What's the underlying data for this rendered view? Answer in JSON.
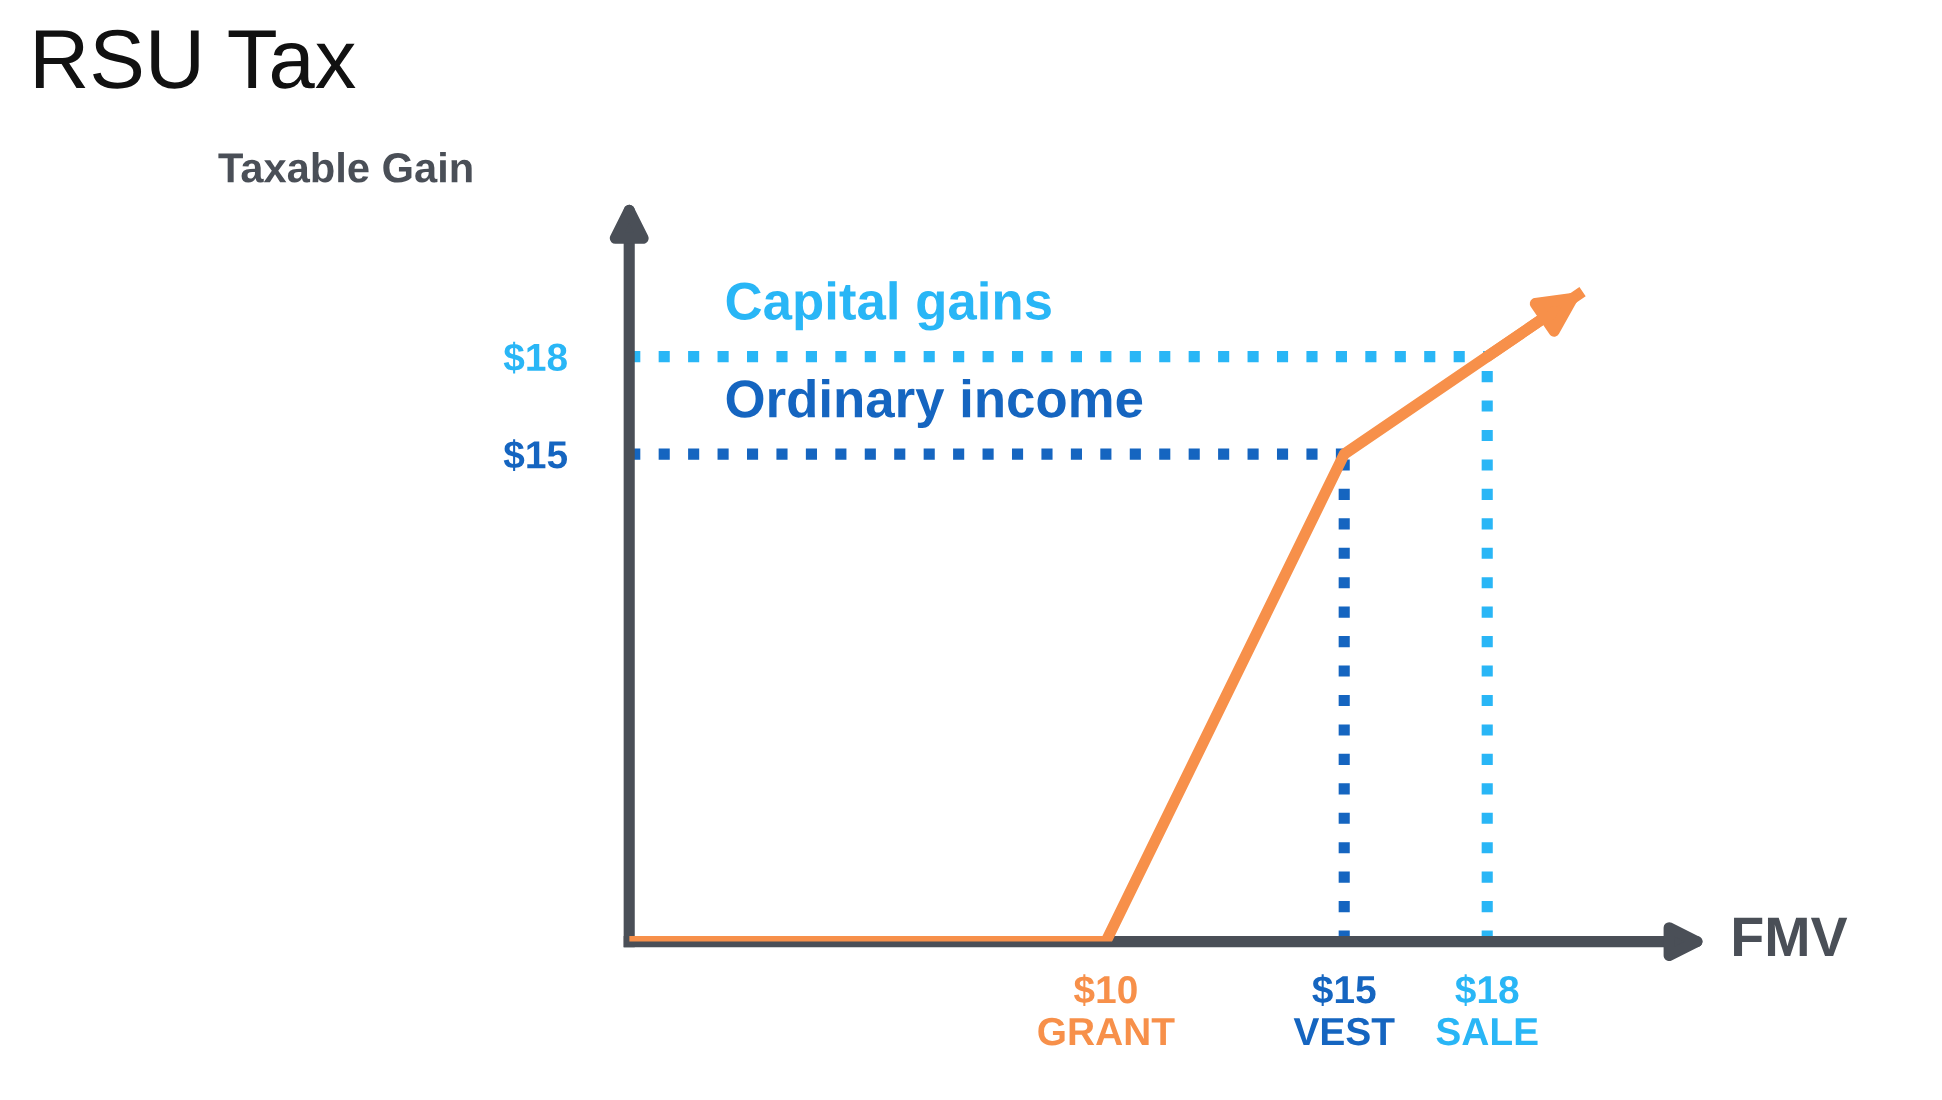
{
  "chart_data": {
    "type": "line",
    "title": "RSU Tax",
    "xlabel": "FMV",
    "ylabel": "Taxable Gain",
    "x": [
      0,
      10,
      15,
      18,
      20
    ],
    "series": [
      {
        "color": "#f7904a",
        "values": [
          0,
          0,
          15,
          18,
          20
        ]
      }
    ],
    "xlim": [
      0,
      22
    ],
    "ylim": [
      0,
      22
    ],
    "xticks": [
      {
        "value": 10,
        "label": "$10\nGRANT"
      },
      {
        "value": 15,
        "label": "$15\nVEST"
      },
      {
        "value": 18,
        "label": "$18\nSALE"
      }
    ],
    "yticks": [
      {
        "value": 15,
        "label": "$15"
      },
      {
        "value": 18,
        "label": "$18"
      }
    ],
    "ref_lines": [
      {
        "axis": "y",
        "value": 15,
        "label": "Ordinary income",
        "color": "#1565c0",
        "line_style": "dotted"
      },
      {
        "axis": "y",
        "value": 18,
        "label": "Capital gains",
        "color": "#29b6f6",
        "line_style": "dotted"
      },
      {
        "axis": "x",
        "value": 15,
        "color": "#1565c0",
        "line_style": "dotted"
      },
      {
        "axis": "x",
        "value": 18,
        "color": "#29b6f6",
        "line_style": "dotted"
      }
    ],
    "grid": false,
    "marker": "none",
    "line_style": "solid"
  }
}
